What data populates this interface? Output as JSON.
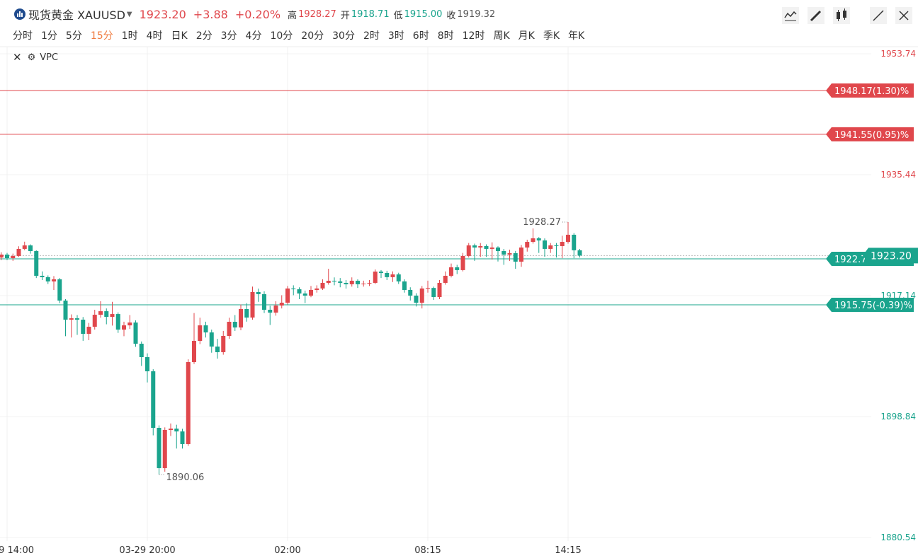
{
  "header": {
    "name": "现货黄金 XAUUSD",
    "price": "1923.20",
    "change": "+3.88",
    "change_pct": "+0.20%",
    "high_label": "高",
    "high": "1928.27",
    "open_label": "开",
    "open": "1918.71",
    "low_label": "低",
    "low": "1915.00",
    "close_label": "收",
    "close": "1919.32"
  },
  "periods": [
    {
      "label": "分时"
    },
    {
      "label": "1分"
    },
    {
      "label": "5分"
    },
    {
      "label": "15分",
      "active": true
    },
    {
      "label": "1时"
    },
    {
      "label": "4时"
    },
    {
      "label": "日K"
    },
    {
      "label": "2分"
    },
    {
      "label": "3分"
    },
    {
      "label": "4分"
    },
    {
      "label": "10分"
    },
    {
      "label": "20分"
    },
    {
      "label": "30分"
    },
    {
      "label": "2时"
    },
    {
      "label": "3时"
    },
    {
      "label": "6时"
    },
    {
      "label": "8时"
    },
    {
      "label": "12时"
    },
    {
      "label": "周K"
    },
    {
      "label": "月K"
    },
    {
      "label": "季K"
    },
    {
      "label": "年K"
    }
  ],
  "indicator": "VPC",
  "chart_data": {
    "type": "candlestick",
    "up_color": "#e0474c",
    "down_color": "#1aa48d",
    "categories": [
      null,
      "9 14:00",
      null,
      null,
      null,
      null,
      null,
      null,
      null,
      null,
      null,
      null,
      null,
      null,
      null,
      null,
      null,
      null,
      null,
      null,
      null,
      null,
      null,
      null,
      null,
      "03-29 20:00",
      null,
      null,
      null,
      null,
      null,
      null,
      null,
      null,
      null,
      null,
      null,
      null,
      null,
      null,
      null,
      null,
      null,
      null,
      null,
      null,
      null,
      null,
      null,
      "02:00",
      null,
      null,
      null,
      null,
      null,
      null,
      null,
      null,
      null,
      null,
      null,
      null,
      null,
      null,
      null,
      null,
      null,
      null,
      null,
      null,
      null,
      null,
      null,
      "08:15",
      null,
      null,
      null,
      null,
      null,
      null,
      null,
      null,
      null,
      null,
      null,
      null,
      null,
      null,
      null,
      null,
      null,
      null,
      null,
      null,
      null,
      null,
      null,
      "14:15",
      null,
      null
    ],
    "open": [
      1922.9,
      1923.35,
      1922.81,
      1923.14,
      1924.21,
      1924.74,
      1923.88,
      1920.14,
      1919.93,
      1919.29,
      1919.61,
      1916.39,
      1913.5,
      1913.71,
      1913.5,
      1911.36,
      1912.43,
      1914.25,
      1914.78,
      1913.93,
      1914.35,
      1912.0,
      1912.64,
      1913.07,
      1909.86,
      1907.83,
      1905.69,
      1897.13,
      1891.03,
      1896.81,
      1897.02,
      1896.59,
      1894.67,
      1907.08,
      1910.29,
      1912.64,
      1911.57,
      1909.43,
      1908.58,
      1911.04,
      1913.18,
      1912.32,
      1915.11,
      1913.82,
      1917.68,
      1917.36,
      1915.0,
      1914.57,
      1915.64,
      1916.07,
      1918.22,
      1918.1,
      1917.46,
      1917.14,
      1918.0,
      1918.22,
      1919.07,
      1919.39,
      1919.29,
      1919.07,
      1918.86,
      1919.39,
      1918.86,
      1918.96,
      1919.07,
      1920.78,
      1920.57,
      1919.93,
      1920.35,
      1919.29,
      1918.0,
      1917.14,
      1916.07,
      1918.22,
      1918.3,
      1916.93,
      1919.07,
      1920.14,
      1921.42,
      1921.0,
      1923.14,
      1924.74,
      1924.42,
      1924.63,
      1924.21,
      1924.42,
      1923.88,
      1923.35,
      1923.56,
      1922.28,
      1924.42,
      1925.27,
      1925.81,
      1925.49,
      1924.21,
      1924.74,
      1924.63,
      1925.27,
      1926.35,
      1924.0
    ],
    "high": [
      1923.7,
      1923.6,
      1923.5,
      1924.6,
      1925.3,
      1924.9,
      1924.0,
      1920.8,
      1920.2,
      1920.1,
      1919.8,
      1916.6,
      1914.3,
      1914.2,
      1913.9,
      1913.0,
      1915.0,
      1916.3,
      1915.2,
      1916.2,
      1914.6,
      1913.2,
      1914.2,
      1913.4,
      1910.2,
      1908.4,
      1906.0,
      1897.5,
      1897.2,
      1897.8,
      1897.6,
      1897.0,
      1907.5,
      1914.5,
      1913.8,
      1913.2,
      1912.0,
      1910.6,
      1911.8,
      1913.8,
      1914.2,
      1915.8,
      1916.0,
      1918.5,
      1918.2,
      1917.8,
      1915.6,
      1916.3,
      1917.2,
      1918.6,
      1918.7,
      1918.4,
      1917.9,
      1918.6,
      1918.7,
      1919.6,
      1921.2,
      1919.9,
      1919.8,
      1919.5,
      1919.9,
      1919.6,
      1919.4,
      1919.5,
      1921.1,
      1921.0,
      1920.9,
      1920.8,
      1920.6,
      1919.6,
      1918.4,
      1917.5,
      1918.6,
      1919.4,
      1918.5,
      1919.5,
      1920.8,
      1922.0,
      1921.8,
      1923.6,
      1925.1,
      1925.0,
      1925.1,
      1924.9,
      1925.2,
      1924.6,
      1924.2,
      1924.1,
      1923.9,
      1924.8,
      1925.6,
      1927.3,
      1926.0,
      1925.8,
      1925.1,
      1925.1,
      1926.2,
      1928.27,
      1926.6,
      1924.2
    ],
    "low": [
      1922.5,
      1922.5,
      1922.4,
      1923.0,
      1924.0,
      1923.5,
      1919.8,
      1919.5,
      1918.9,
      1918.0,
      1916.0,
      1911.0,
      1910.8,
      1911.2,
      1910.3,
      1910.4,
      1912.0,
      1913.8,
      1912.8,
      1912.6,
      1911.5,
      1911.0,
      1912.1,
      1909.4,
      1906.5,
      1904.0,
      1896.0,
      1890.06,
      1890.5,
      1895.9,
      1894.0,
      1894.0,
      1894.4,
      1906.8,
      1909.8,
      1910.8,
      1908.5,
      1907.6,
      1908.2,
      1910.6,
      1911.8,
      1911.9,
      1913.2,
      1913.5,
      1916.2,
      1914.5,
      1912.7,
      1914.1,
      1915.2,
      1915.8,
      1917.2,
      1916.6,
      1916.0,
      1916.9,
      1917.6,
      1918.0,
      1918.8,
      1918.7,
      1918.4,
      1918.2,
      1918.5,
      1918.3,
      1918.5,
      1918.6,
      1918.9,
      1919.8,
      1919.5,
      1919.2,
      1918.9,
      1917.6,
      1916.4,
      1915.5,
      1915.2,
      1917.6,
      1916.5,
      1916.6,
      1918.8,
      1919.9,
      1920.4,
      1920.8,
      1922.9,
      1922.4,
      1923.0,
      1923.0,
      1922.6,
      1922.3,
      1921.8,
      1922.4,
      1921.2,
      1921.5,
      1923.8,
      1925.0,
      1923.6,
      1923.0,
      1923.6,
      1922.9,
      1922.8,
      1925.0,
      1922.8,
      1922.9
    ],
    "close": [
      1923.35,
      1922.81,
      1923.14,
      1924.21,
      1924.74,
      1923.88,
      1920.14,
      1919.93,
      1919.29,
      1919.61,
      1916.39,
      1913.5,
      1913.71,
      1913.5,
      1911.36,
      1912.43,
      1914.25,
      1914.78,
      1913.93,
      1914.35,
      1912.0,
      1912.64,
      1913.07,
      1909.86,
      1907.83,
      1905.69,
      1897.13,
      1891.03,
      1896.81,
      1897.02,
      1896.59,
      1894.67,
      1907.08,
      1910.29,
      1912.64,
      1911.57,
      1909.43,
      1908.58,
      1911.04,
      1913.18,
      1912.32,
      1915.11,
      1913.82,
      1917.68,
      1917.36,
      1915.0,
      1914.57,
      1915.64,
      1916.07,
      1918.22,
      1918.1,
      1917.46,
      1917.14,
      1918.0,
      1918.22,
      1919.07,
      1919.39,
      1919.29,
      1919.07,
      1918.86,
      1919.39,
      1918.86,
      1918.96,
      1919.07,
      1920.78,
      1920.57,
      1919.93,
      1920.35,
      1919.29,
      1918.0,
      1917.14,
      1916.07,
      1918.22,
      1918.3,
      1916.93,
      1919.07,
      1920.14,
      1921.42,
      1921.0,
      1923.14,
      1924.74,
      1924.42,
      1924.63,
      1924.21,
      1924.42,
      1923.88,
      1923.35,
      1923.56,
      1922.28,
      1924.42,
      1925.27,
      1925.81,
      1925.49,
      1924.21,
      1924.74,
      1924.63,
      1925.27,
      1926.35,
      1924.0,
      1923.2
    ],
    "ylim": [
      1880.54,
      1953.74
    ],
    "yticks": [
      1880.54,
      1898.84,
      1917.14,
      1935.44,
      1953.74
    ],
    "prev_close": 1919.32,
    "high_index": 97,
    "low_index": 27,
    "price_lines": [
      {
        "value": 1948.17,
        "label": "1948.17(1.30)%",
        "color": "#e0474c"
      },
      {
        "value": 1941.55,
        "label": "1941.55(0.95)%",
        "color": "#e0474c"
      },
      {
        "value": 1922.7,
        "label": "1922.7",
        "color": "#1aa48d"
      },
      {
        "value": 1915.75,
        "label": "1915.75(-0.39)%",
        "color": "#1aa48d"
      }
    ],
    "last_price": {
      "value": 1923.2,
      "label": "1923.20"
    }
  }
}
